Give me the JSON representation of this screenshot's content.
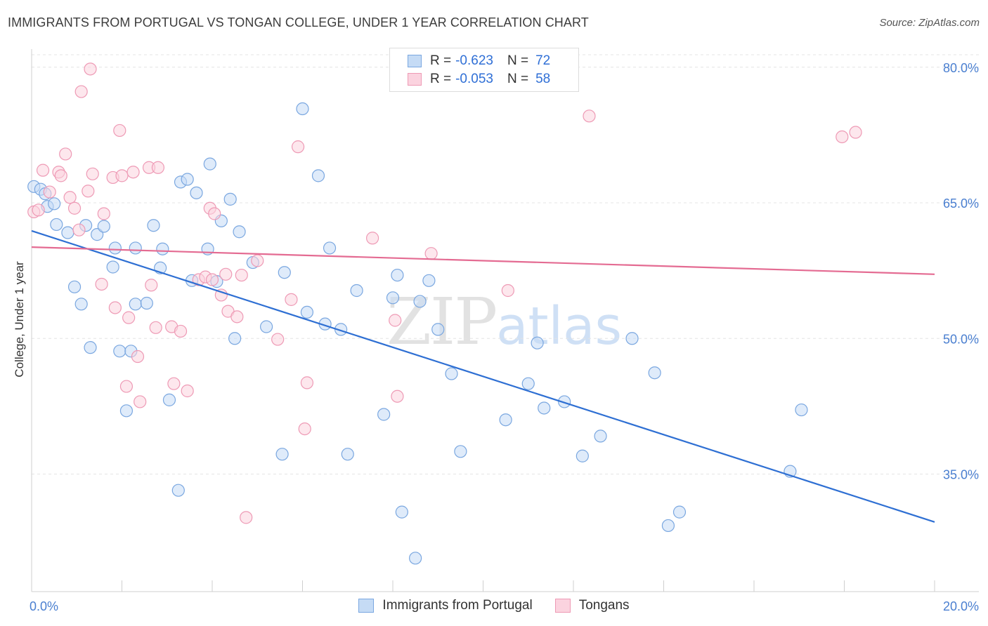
{
  "header": {
    "title": "IMMIGRANTS FROM PORTUGAL VS TONGAN COLLEGE, UNDER 1 YEAR CORRELATION CHART",
    "source": "Source: ZipAtlas.com"
  },
  "watermark": {
    "zip": "ZIP",
    "atlas": "atlas"
  },
  "legend": {
    "rows": [
      {
        "r_label": "R =",
        "r_value": "-0.623",
        "n_label": "N =",
        "n_value": "72",
        "color": "#a8c8ef"
      },
      {
        "r_label": "R =",
        "r_value": "-0.053",
        "n_label": "N =",
        "n_value": "58",
        "color": "#f5b8cb"
      }
    ]
  },
  "bottom_legend": [
    {
      "label": "Immigrants from Portugal",
      "color": "#a8c8ef"
    },
    {
      "label": "Tongans",
      "color": "#f5b8cb"
    }
  ],
  "chart_data": {
    "type": "scatter",
    "title": "IMMIGRANTS FROM PORTUGAL VS TONGAN COLLEGE, UNDER 1 YEAR CORRELATION CHART",
    "xlabel": "",
    "ylabel": "College, Under 1 year",
    "xlim": [
      0,
      20
    ],
    "ylim": [
      22,
      82
    ],
    "x_tick_labels": [
      "0.0%",
      "20.0%"
    ],
    "y_ticks": [
      35,
      50,
      65,
      80
    ],
    "y_tick_labels": [
      "35.0%",
      "50.0%",
      "65.0%",
      "80.0%"
    ],
    "grid": true,
    "legend_position": "top-center",
    "series": [
      {
        "name": "Immigrants from Portugal",
        "color": "#a8c8ef",
        "line_color": "#2e6fd3",
        "trend": [
          [
            0,
            61.9
          ],
          [
            20,
            29.7
          ]
        ],
        "points": [
          [
            0.05,
            66.8
          ],
          [
            0.2,
            66.5
          ],
          [
            0.3,
            66.0
          ],
          [
            0.35,
            64.6
          ],
          [
            0.55,
            62.6
          ],
          [
            0.8,
            61.7
          ],
          [
            1.2,
            62.5
          ],
          [
            1.45,
            61.5
          ],
          [
            1.6,
            62.4
          ],
          [
            1.8,
            57.9
          ],
          [
            1.85,
            60.0
          ],
          [
            2.3,
            60.0
          ],
          [
            2.7,
            62.5
          ],
          [
            2.85,
            57.8
          ],
          [
            2.9,
            59.9
          ],
          [
            3.3,
            67.3
          ],
          [
            3.45,
            67.6
          ],
          [
            3.65,
            66.1
          ],
          [
            3.9,
            59.9
          ],
          [
            3.95,
            69.3
          ],
          [
            4.2,
            63.0
          ],
          [
            4.4,
            65.4
          ],
          [
            4.6,
            61.8
          ],
          [
            4.9,
            58.4
          ],
          [
            5.6,
            57.3
          ],
          [
            6.0,
            75.4
          ],
          [
            6.35,
            68.0
          ],
          [
            6.6,
            60.0
          ],
          [
            0.95,
            55.7
          ],
          [
            1.1,
            53.8
          ],
          [
            1.3,
            49.0
          ],
          [
            1.95,
            48.6
          ],
          [
            2.1,
            42.0
          ],
          [
            2.2,
            48.6
          ],
          [
            2.3,
            53.8
          ],
          [
            2.55,
            53.9
          ],
          [
            3.05,
            43.2
          ],
          [
            3.25,
            33.2
          ],
          [
            3.55,
            56.4
          ],
          [
            4.1,
            56.3
          ],
          [
            4.5,
            50.0
          ],
          [
            5.2,
            51.3
          ],
          [
            5.55,
            37.2
          ],
          [
            6.1,
            52.9
          ],
          [
            6.5,
            51.6
          ],
          [
            6.85,
            51.0
          ],
          [
            7.0,
            37.2
          ],
          [
            7.2,
            55.3
          ],
          [
            7.8,
            41.6
          ],
          [
            8.0,
            54.5
          ],
          [
            8.1,
            57.0
          ],
          [
            8.2,
            30.8
          ],
          [
            8.5,
            25.7
          ],
          [
            8.6,
            54.1
          ],
          [
            8.8,
            56.4
          ],
          [
            9.0,
            51.0
          ],
          [
            9.3,
            46.1
          ],
          [
            9.5,
            37.5
          ],
          [
            10.5,
            41.0
          ],
          [
            11.0,
            45.0
          ],
          [
            11.2,
            49.5
          ],
          [
            11.35,
            42.3
          ],
          [
            11.8,
            43.0
          ],
          [
            12.2,
            37.0
          ],
          [
            12.6,
            39.2
          ],
          [
            13.3,
            50.0
          ],
          [
            13.8,
            46.2
          ],
          [
            14.1,
            29.3
          ],
          [
            14.35,
            30.8
          ],
          [
            16.8,
            35.3
          ],
          [
            17.05,
            42.1
          ],
          [
            0.5,
            64.9
          ]
        ]
      },
      {
        "name": "Tongans",
        "color": "#f5b8cb",
        "line_color": "#e46b92",
        "trend": [
          [
            0,
            60.1
          ],
          [
            20,
            57.1
          ]
        ],
        "points": [
          [
            0.05,
            64.0
          ],
          [
            0.15,
            64.2
          ],
          [
            0.25,
            68.6
          ],
          [
            0.4,
            66.2
          ],
          [
            0.6,
            68.4
          ],
          [
            0.65,
            68.0
          ],
          [
            0.75,
            70.4
          ],
          [
            0.85,
            65.6
          ],
          [
            0.95,
            64.4
          ],
          [
            1.05,
            62.0
          ],
          [
            1.1,
            77.3
          ],
          [
            1.25,
            66.3
          ],
          [
            1.3,
            79.8
          ],
          [
            1.35,
            68.2
          ],
          [
            1.55,
            56.0
          ],
          [
            1.6,
            63.8
          ],
          [
            1.8,
            67.8
          ],
          [
            1.85,
            53.4
          ],
          [
            1.95,
            73.0
          ],
          [
            2.0,
            68.0
          ],
          [
            2.1,
            44.7
          ],
          [
            2.15,
            52.3
          ],
          [
            2.25,
            68.4
          ],
          [
            2.35,
            48.0
          ],
          [
            2.4,
            43.0
          ],
          [
            2.6,
            68.9
          ],
          [
            2.65,
            55.9
          ],
          [
            2.75,
            51.2
          ],
          [
            2.8,
            68.9
          ],
          [
            3.1,
            51.3
          ],
          [
            3.15,
            45.0
          ],
          [
            3.3,
            50.8
          ],
          [
            3.45,
            44.2
          ],
          [
            3.7,
            56.5
          ],
          [
            3.85,
            56.8
          ],
          [
            3.95,
            64.4
          ],
          [
            4.0,
            56.5
          ],
          [
            4.05,
            63.8
          ],
          [
            4.2,
            54.8
          ],
          [
            4.3,
            57.1
          ],
          [
            4.35,
            53.0
          ],
          [
            4.55,
            52.4
          ],
          [
            4.65,
            57.0
          ],
          [
            4.75,
            30.2
          ],
          [
            5.0,
            58.6
          ],
          [
            5.45,
            49.9
          ],
          [
            5.75,
            54.3
          ],
          [
            5.9,
            71.2
          ],
          [
            6.05,
            40.0
          ],
          [
            6.1,
            45.1
          ],
          [
            7.55,
            61.1
          ],
          [
            8.05,
            52.0
          ],
          [
            8.1,
            43.6
          ],
          [
            8.85,
            59.4
          ],
          [
            10.55,
            55.3
          ],
          [
            12.35,
            74.6
          ],
          [
            17.95,
            72.3
          ],
          [
            18.25,
            72.8
          ]
        ]
      }
    ]
  }
}
